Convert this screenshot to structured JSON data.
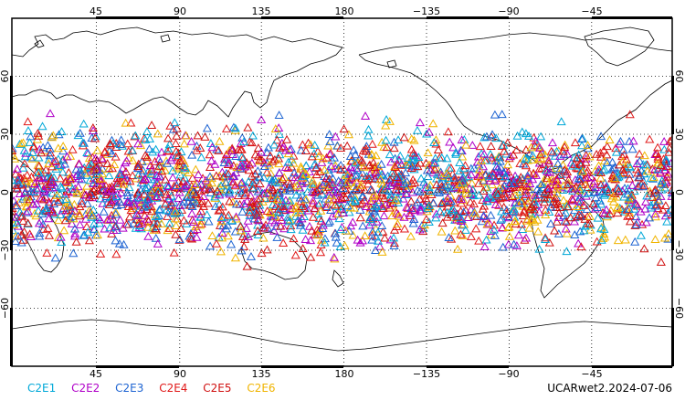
{
  "chart_data": {
    "type": "scatter",
    "projection": "cylindrical-equidistant",
    "lon_range": [
      0,
      360
    ],
    "lat_range": [
      -90,
      90
    ],
    "x_ticks": [
      "45",
      "90",
      "135",
      "180",
      "−135",
      "−90",
      "−45"
    ],
    "y_ticks": [
      "60",
      "30",
      "0",
      "−30",
      "−60"
    ],
    "grid": true,
    "marker": "open-triangle",
    "series": [
      {
        "name": "C2E1",
        "color": "#00a8d8"
      },
      {
        "name": "C2E2",
        "color": "#b000c8"
      },
      {
        "name": "C2E3",
        "color": "#1e64d2"
      },
      {
        "name": "C2E4",
        "color": "#e01818"
      },
      {
        "name": "C2E5",
        "color": "#d01010"
      },
      {
        "name": "C2E6",
        "color": "#f0b400"
      }
    ],
    "coverage_lat": [
      -42,
      45
    ]
  },
  "product_label": "UCARwet2.2024-07-06"
}
